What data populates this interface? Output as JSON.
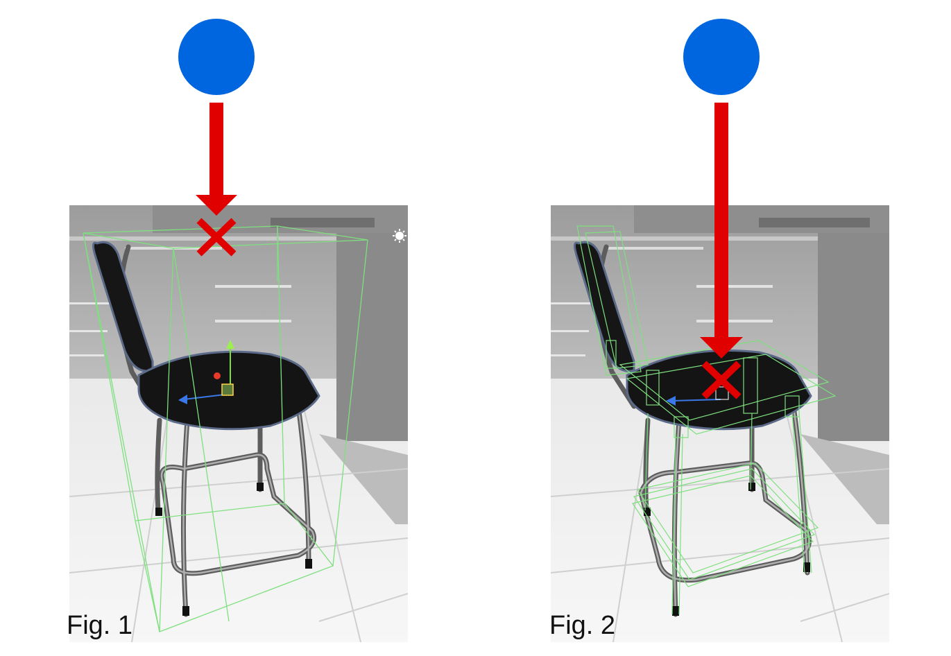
{
  "figures": [
    {
      "caption": "Fig. 1"
    },
    {
      "caption": "Fig. 2"
    }
  ],
  "colors": {
    "marker": "#0066e0",
    "arrow": "#e00000",
    "hit": "#e00000",
    "collider": "#7ee07e",
    "seat": "#141414",
    "metal": "#9a9a9a"
  },
  "icons": [
    "sun-icon",
    "move-gizmo-icon",
    "hit-x-icon"
  ]
}
